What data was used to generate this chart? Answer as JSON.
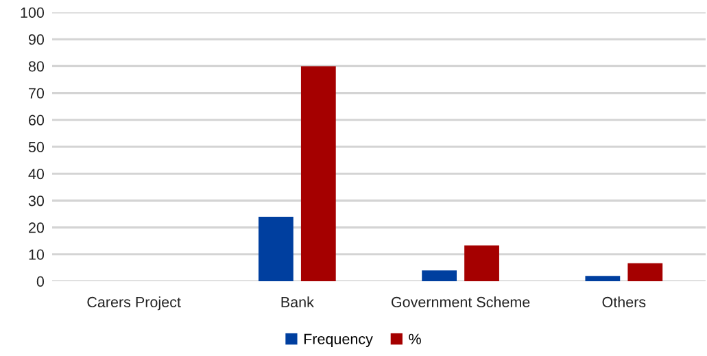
{
  "chart_data": {
    "type": "bar",
    "categories": [
      "Carers Project",
      "Bank",
      "Government Scheme",
      "Others"
    ],
    "series": [
      {
        "name": "Frequency",
        "color": "#003f9f",
        "values": [
          0,
          24,
          4,
          2
        ]
      },
      {
        "name": "%",
        "color": "#a50000",
        "values": [
          0,
          80,
          13.3,
          6.7
        ]
      }
    ],
    "ylim": [
      0,
      100
    ],
    "yticks": [
      0,
      10,
      20,
      30,
      40,
      50,
      60,
      70,
      80,
      90,
      100
    ],
    "grid": "y",
    "legend": "bottom"
  }
}
